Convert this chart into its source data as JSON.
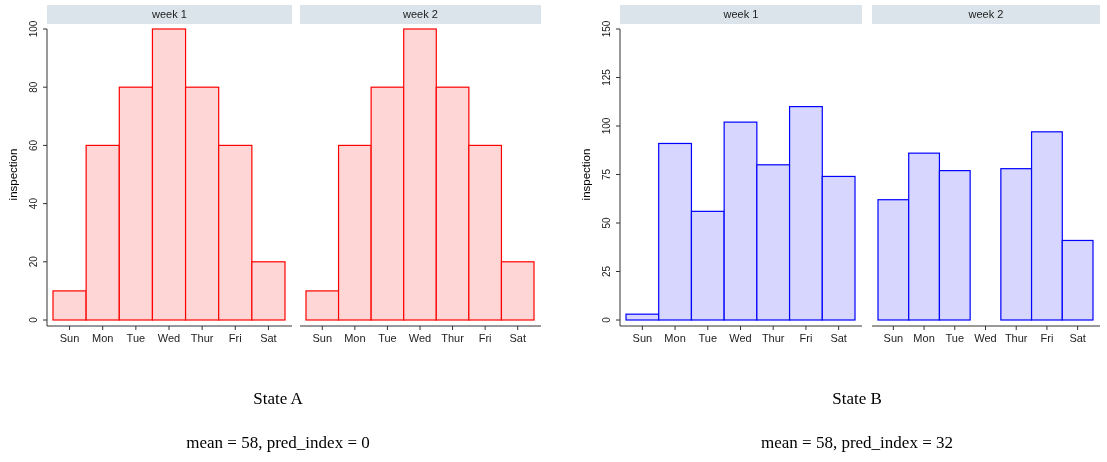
{
  "chart_data": [
    {
      "type": "bar",
      "title": "week 1",
      "ylabel": "inspection",
      "categories": [
        "Sun",
        "Mon",
        "Tue",
        "Wed",
        "Thur",
        "Fri",
        "Sat"
      ],
      "values": [
        10,
        60,
        80,
        100,
        80,
        60,
        20
      ],
      "color": "#ff0000",
      "ylim": [
        0,
        100
      ],
      "yticks": [
        0,
        20,
        40,
        60,
        80,
        100
      ],
      "annotations": [
        "State A",
        "mean = 58, pred_index = 0"
      ]
    },
    {
      "type": "bar",
      "title": "week 2",
      "categories": [
        "Sun",
        "Mon",
        "Tue",
        "Wed",
        "Thur",
        "Fri",
        "Sat"
      ],
      "values": [
        10,
        60,
        80,
        100,
        80,
        60,
        20
      ],
      "color": "#ff0000",
      "ylim": [
        0,
        100
      ],
      "tick_labels": "x"
    },
    {
      "type": "bar",
      "title": "week 1",
      "ylabel": "inspection",
      "categories": [
        "Sun",
        "Mon",
        "Tue",
        "Wed",
        "Thur",
        "Fri",
        "Sat"
      ],
      "values": [
        3,
        91,
        56,
        102,
        80,
        110,
        74
      ],
      "color": "#0000ff",
      "ylim": [
        0,
        150
      ],
      "yticks": [
        0,
        25,
        50,
        75,
        100,
        125,
        150
      ],
      "annotations": [
        "State B",
        "mean = 58, pred_index = 32"
      ]
    },
    {
      "type": "bar",
      "title": "week 2",
      "categories": [
        "Sun",
        "Mon",
        "Tue",
        "Wed",
        "Thur",
        "Fri",
        "Sat"
      ],
      "values": [
        62,
        86,
        77,
        null,
        78,
        97,
        41
      ],
      "color": "#0000ff",
      "ylim": [
        0,
        150
      ],
      "tick_labels": "x"
    }
  ]
}
